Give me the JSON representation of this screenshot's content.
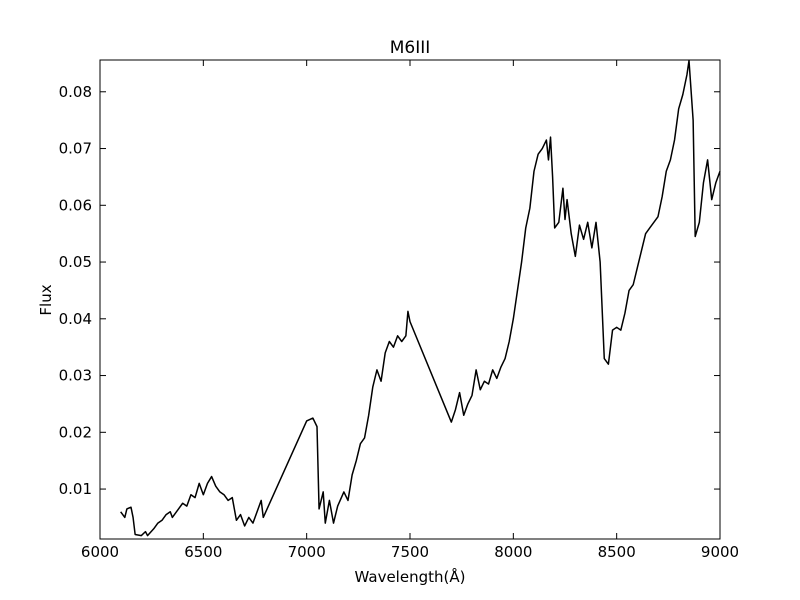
{
  "chart_data": {
    "type": "line",
    "title": "M6III",
    "x_label": "Wavelength(Å)",
    "y_label": "Flux",
    "color": "#000000",
    "x": [
      6100,
      6120,
      6130,
      6150,
      6160,
      6170,
      6200,
      6220,
      6230,
      6260,
      6280,
      6300,
      6320,
      6340,
      6350,
      6380,
      6400,
      6420,
      6440,
      6460,
      6480,
      6500,
      6520,
      6540,
      6560,
      6580,
      6600,
      6620,
      6640,
      6660,
      6680,
      6700,
      6720,
      6740,
      6760,
      6780,
      6790,
      7000,
      7030,
      7050,
      7060,
      7080,
      7090,
      7110,
      7130,
      7150,
      7180,
      7200,
      7220,
      7240,
      7260,
      7280,
      7300,
      7320,
      7340,
      7360,
      7380,
      7400,
      7420,
      7440,
      7460,
      7480,
      7490,
      7500,
      7700,
      7720,
      7740,
      7760,
      7780,
      7800,
      7820,
      7840,
      7860,
      7880,
      7900,
      7920,
      7940,
      7960,
      7980,
      8000,
      8020,
      8040,
      8060,
      8080,
      8100,
      8120,
      8140,
      8160,
      8170,
      8180,
      8190,
      8200,
      8220,
      8240,
      8250,
      8260,
      8280,
      8300,
      8320,
      8340,
      8360,
      8380,
      8400,
      8420,
      8440,
      8460,
      8480,
      8500,
      8520,
      8540,
      8560,
      8580,
      8600,
      8620,
      8640,
      8660,
      8680,
      8700,
      8720,
      8740,
      8760,
      8780,
      8800,
      8820,
      8840,
      8850,
      8870,
      8880,
      8900,
      8920,
      8940,
      8960,
      8980,
      9000
    ],
    "values": [
      0.006,
      0.005,
      0.0065,
      0.0068,
      0.005,
      0.002,
      0.0018,
      0.0025,
      0.0018,
      0.003,
      0.004,
      0.0045,
      0.0055,
      0.006,
      0.005,
      0.0065,
      0.0075,
      0.007,
      0.009,
      0.0085,
      0.011,
      0.009,
      0.011,
      0.0122,
      0.0105,
      0.0095,
      0.009,
      0.008,
      0.0085,
      0.0045,
      0.0055,
      0.0035,
      0.005,
      0.004,
      0.006,
      0.008,
      0.005,
      0.022,
      0.0225,
      0.021,
      0.0065,
      0.0095,
      0.004,
      0.008,
      0.004,
      0.007,
      0.0095,
      0.008,
      0.0125,
      0.015,
      0.018,
      0.019,
      0.023,
      0.028,
      0.031,
      0.029,
      0.034,
      0.036,
      0.035,
      0.037,
      0.036,
      0.037,
      0.0413,
      0.0395,
      0.0218,
      0.024,
      0.027,
      0.023,
      0.025,
      0.0265,
      0.031,
      0.0275,
      0.029,
      0.0285,
      0.031,
      0.0295,
      0.0315,
      0.033,
      0.036,
      0.04,
      0.045,
      0.05,
      0.056,
      0.0595,
      0.066,
      0.069,
      0.07,
      0.0715,
      0.068,
      0.072,
      0.065,
      0.056,
      0.057,
      0.063,
      0.0575,
      0.061,
      0.055,
      0.051,
      0.0565,
      0.054,
      0.057,
      0.0525,
      0.057,
      0.05,
      0.033,
      0.032,
      0.038,
      0.0385,
      0.038,
      0.041,
      0.045,
      0.046,
      0.049,
      0.052,
      0.055,
      0.056,
      0.057,
      0.058,
      0.0615,
      0.066,
      0.068,
      0.0715,
      0.077,
      0.0795,
      0.083,
      0.0855,
      0.075,
      0.0545,
      0.057,
      0.064,
      0.068,
      0.061,
      0.064,
      0.066
    ],
    "xlim": [
      6000,
      9000
    ],
    "xticks": [
      6000,
      6500,
      7000,
      7500,
      8000,
      8500,
      9000
    ],
    "ylim": [
      0.0012,
      0.0856
    ],
    "yticks": [
      0.01,
      0.02,
      0.03,
      0.04,
      0.05,
      0.06,
      0.07,
      0.08
    ]
  }
}
